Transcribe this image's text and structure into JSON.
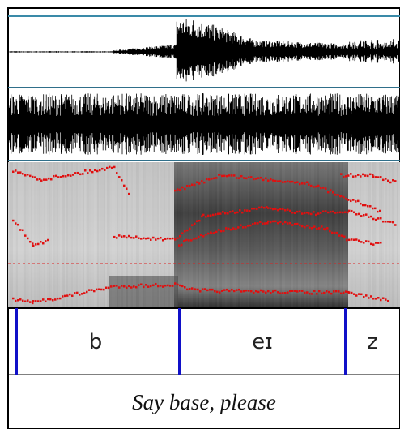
{
  "tier": {
    "segments": [
      "b",
      "eɪ",
      "z"
    ]
  },
  "sentence": "Say base, please"
}
